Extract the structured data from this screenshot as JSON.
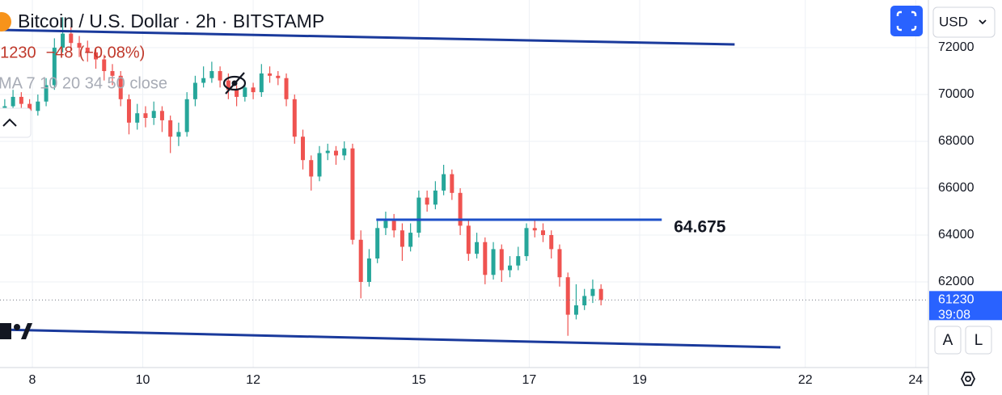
{
  "chart_data": {
    "type": "candlestick",
    "title": "Bitcoin / U.S. Dollar · 2h · BITSTAMP",
    "change": "−48",
    "change_pct": "(−0.08%)",
    "indicator": "MA 7 10 20 34 50 close",
    "currency": "USD",
    "countdown": "39:08",
    "level_label": "64.675",
    "buttons": [
      "A",
      "L"
    ],
    "up_color": "#26a69a",
    "down_color": "#ef5350",
    "grid": true,
    "xlim": [
      7.414,
      24.23
    ],
    "xticks": [
      8,
      10,
      12,
      15,
      17,
      19,
      22,
      24
    ],
    "ylim": [
      58345,
      74035
    ],
    "yticks": [
      62000,
      64000,
      66000,
      68000,
      70000,
      72000
    ],
    "x": [
      7.5,
      7.65,
      7.8,
      7.95,
      8.1,
      8.25,
      8.4,
      8.55,
      8.7,
      8.85,
      9,
      9.15,
      9.3,
      9.45,
      9.6,
      9.75,
      9.9,
      10.05,
      10.2,
      10.35,
      10.5,
      10.65,
      10.8,
      10.95,
      11.1,
      11.25,
      11.4,
      11.55,
      11.7,
      11.85,
      12,
      12.15,
      12.3,
      12.45,
      12.6,
      12.75,
      12.9,
      13.05,
      13.2,
      13.35,
      13.5,
      13.65,
      13.8,
      13.95,
      14.1,
      14.25,
      14.4,
      14.55,
      14.7,
      14.85,
      15,
      15.15,
      15.3,
      15.45,
      15.6,
      15.75,
      15.9,
      16.05,
      16.2,
      16.35,
      16.5,
      16.65,
      16.8,
      16.95,
      17.1,
      17.25,
      17.4,
      17.55,
      17.7,
      17.85,
      18,
      18.15,
      18.3
    ],
    "open": [
      69300,
      69500,
      69900,
      69600,
      69300,
      69700,
      70400,
      72000,
      72600,
      72200,
      72000,
      71800,
      71500,
      71000,
      70800,
      69800,
      68800,
      69200,
      69000,
      69300,
      68900,
      68200,
      68400,
      69800,
      70500,
      70700,
      71000,
      70600,
      70200,
      69900,
      70300,
      70100,
      70900,
      70800,
      70700,
      69800,
      68200,
      67200,
      66500,
      67500,
      67600,
      67400,
      67700,
      63800,
      62000,
      63000,
      64300,
      64600,
      64200,
      63500,
      64100,
      65600,
      65300,
      65900,
      66600,
      65800,
      64400,
      63200,
      63700,
      62300,
      63400,
      62500,
      62700,
      63100,
      64300,
      64200,
      64000,
      63400,
      62200,
      60600,
      61000,
      61400,
      61700
    ],
    "high": [
      69800,
      70200,
      70100,
      69800,
      70000,
      70700,
      72400,
      73300,
      72900,
      72500,
      72300,
      72000,
      71700,
      71300,
      71000,
      70000,
      69600,
      69500,
      69700,
      69500,
      69100,
      68800,
      70100,
      70800,
      71200,
      71400,
      71200,
      70900,
      70400,
      70600,
      70500,
      71300,
      71200,
      71000,
      70900,
      70000,
      68500,
      67400,
      67800,
      67900,
      67800,
      68000,
      67900,
      64200,
      63400,
      64600,
      65000,
      64900,
      64500,
      64500,
      65900,
      65900,
      66300,
      67000,
      66800,
      66000,
      64700,
      64100,
      63900,
      63700,
      63600,
      63100,
      63500,
      64500,
      64700,
      64500,
      64200,
      63600,
      62400,
      61900,
      61700,
      62100,
      61900
    ],
    "low": [
      69000,
      69300,
      69400,
      69000,
      69100,
      69500,
      70200,
      71800,
      71900,
      71600,
      71400,
      71100,
      70600,
      70400,
      69500,
      68300,
      68500,
      68600,
      68700,
      68400,
      67500,
      67800,
      68200,
      69500,
      70300,
      70500,
      70300,
      69800,
      69500,
      69700,
      69800,
      69900,
      70500,
      70400,
      69500,
      67900,
      66800,
      65900,
      66300,
      67200,
      67000,
      67200,
      63600,
      61300,
      61800,
      62800,
      64000,
      63900,
      62900,
      63300,
      63900,
      65000,
      65100,
      65700,
      65500,
      64000,
      62900,
      63000,
      61900,
      62100,
      62000,
      62200,
      62500,
      62900,
      63900,
      63700,
      63000,
      61800,
      59700,
      60400,
      60800,
      61100,
      61000
    ],
    "close": [
      69500,
      69900,
      69600,
      69300,
      69700,
      70400,
      72000,
      72600,
      72200,
      72000,
      71800,
      71500,
      71000,
      70800,
      69800,
      68800,
      69200,
      69000,
      69300,
      68900,
      68200,
      68400,
      69800,
      70500,
      70700,
      71000,
      70600,
      70200,
      69900,
      70300,
      70100,
      70900,
      70800,
      70700,
      69800,
      68200,
      67200,
      66500,
      67500,
      67600,
      67400,
      67700,
      63800,
      62000,
      63000,
      64300,
      64600,
      64200,
      63500,
      64100,
      65600,
      65300,
      65900,
      66600,
      65800,
      64400,
      63200,
      63700,
      62300,
      63400,
      62500,
      62700,
      63100,
      64300,
      64200,
      64000,
      63400,
      62200,
      60600,
      61000,
      61400,
      61700,
      61230
    ],
    "trendlines": [
      {
        "x": [
          7.414,
          20.72
        ],
        "y": [
          72759,
          72138
        ],
        "color": "#1a3a9c"
      },
      {
        "x": [
          14.23,
          19.4
        ],
        "y": [
          64655,
          64655
        ],
        "color": "#1e50c8"
      },
      {
        "x": [
          7.414,
          21.55
        ],
        "y": [
          59966,
          59207
        ],
        "color": "#1a3a9c"
      }
    ]
  }
}
